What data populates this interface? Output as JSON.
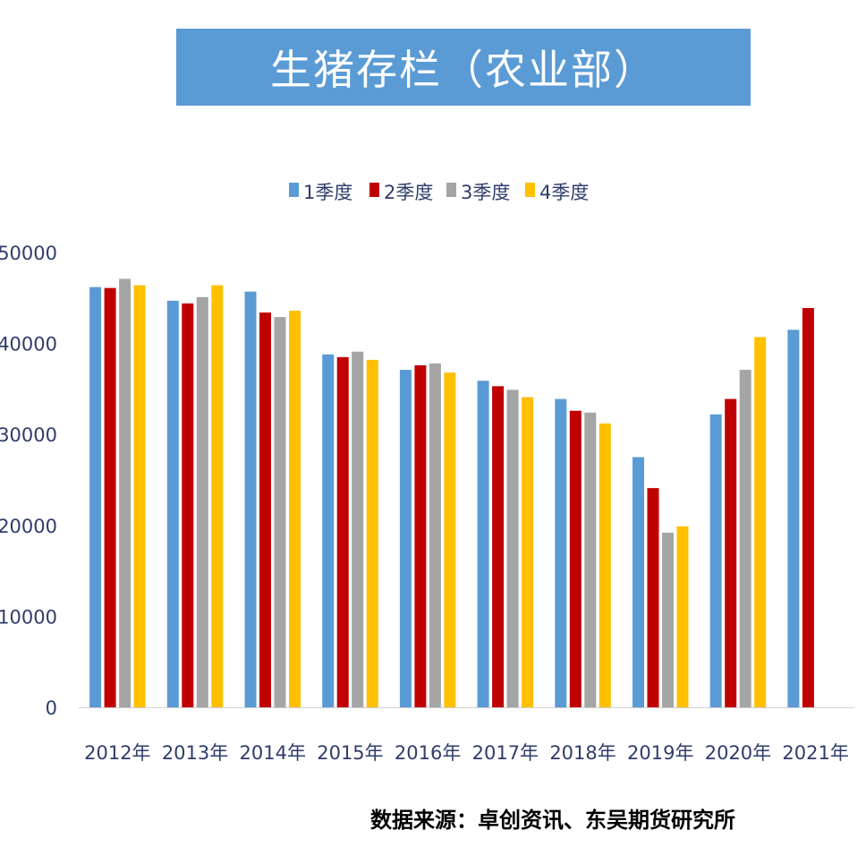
{
  "chart_data": {
    "type": "bar",
    "title": "生猪存栏（农业部）",
    "categories": [
      "2012年",
      "2013年",
      "2014年",
      "2015年",
      "2016年",
      "2017年",
      "2018年",
      "2019年",
      "2020年",
      "2021年"
    ],
    "series": [
      {
        "name": "1季度",
        "color": "#5b9bd5",
        "values": [
          46200,
          44700,
          45700,
          38800,
          37100,
          35900,
          33900,
          27500,
          32200,
          41500
        ]
      },
      {
        "name": "2季度",
        "color": "#c00000",
        "values": [
          46100,
          44400,
          43400,
          38500,
          37600,
          35300,
          32600,
          24100,
          33900,
          43900
        ]
      },
      {
        "name": "3季度",
        "color": "#a5a5a5",
        "values": [
          47100,
          45100,
          42900,
          39100,
          37800,
          34900,
          32400,
          19200,
          37100,
          null
        ]
      },
      {
        "name": "4季度",
        "color": "#ffc000",
        "values": [
          46400,
          46400,
          43600,
          38200,
          36800,
          34100,
          31200,
          19900,
          40700,
          null
        ]
      }
    ],
    "yticks": [
      "0",
      "10000",
      "20000",
      "30000",
      "40000",
      "50000"
    ],
    "ylim": [
      0,
      50000
    ],
    "grid": false,
    "legend": "top-center"
  },
  "source_note": "数据来源：卓创资讯、东吴期货研究所"
}
